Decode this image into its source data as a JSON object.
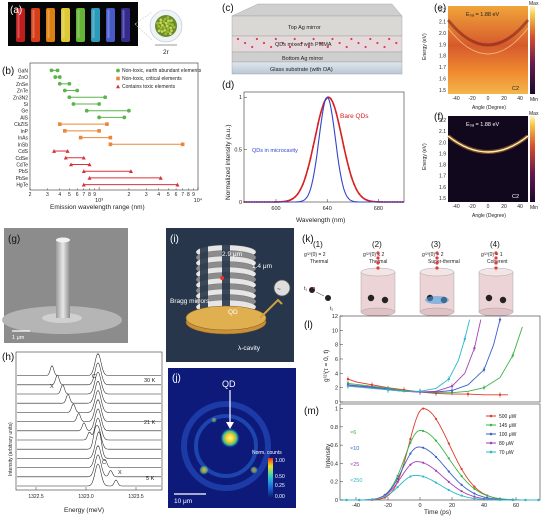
{
  "panel_labels": {
    "a": "(a)",
    "b": "(b)",
    "c": "(c)",
    "d": "(d)",
    "e": "(e)",
    "f": "(f)",
    "g": "(g)",
    "h": "(h)",
    "i": "(i)",
    "j": "(j)",
    "k": "(k)",
    "l": "(l)",
    "m": "(m)"
  },
  "panel_a": {
    "size_label": "2r",
    "tube_colors": [
      "#d21f1f",
      "#e8431a",
      "#f18b12",
      "#f0d93a",
      "#6cc43a",
      "#2fa8c9",
      "#4c63d8",
      "#3a2f9a"
    ]
  },
  "panel_b": {
    "xlabel": "Emission wavelength range (nm)",
    "x_ticks": [
      {
        "v": 1000,
        "label": "10³"
      },
      {
        "v": 10000,
        "label": "10⁴"
      }
    ],
    "legend": [
      {
        "label": "Non-toxic, earth abundant elements",
        "color": "#5bb54a",
        "marker": "circle"
      },
      {
        "label": "Non-toxic, critical elements",
        "color": "#e8883a",
        "marker": "square"
      },
      {
        "label": "Contains toxic elements",
        "color": "#d8323a",
        "marker": "triangle"
      }
    ],
    "chart_data": {
      "type": "range",
      "xscale": "log",
      "xlim": [
        200,
        10000
      ],
      "materials": [
        {
          "name": "GaN",
          "range": [
            330,
            380
          ],
          "class": 0
        },
        {
          "name": "ZnO",
          "range": [
            360,
            400
          ],
          "class": 0
        },
        {
          "name": "ZnSe",
          "range": [
            400,
            500
          ],
          "class": 0
        },
        {
          "name": "ZnTe",
          "range": [
            450,
            600
          ],
          "class": 0
        },
        {
          "name": "Zn3N2",
          "range": [
            500,
            1150
          ],
          "class": 0
        },
        {
          "name": "Si",
          "range": [
            550,
            1000
          ],
          "class": 0
        },
        {
          "name": "Ge",
          "range": [
            750,
            2000
          ],
          "class": 0
        },
        {
          "name": "AlS",
          "range": [
            1000,
            1800
          ],
          "class": 0
        },
        {
          "name": "CkZIS",
          "range": [
            400,
            1200
          ],
          "class": 1
        },
        {
          "name": "InP",
          "range": [
            450,
            1000
          ],
          "class": 1
        },
        {
          "name": "InAs",
          "range": [
            650,
            1300
          ],
          "class": 1
        },
        {
          "name": "InSb",
          "range": [
            1300,
            7000
          ],
          "class": 1
        },
        {
          "name": "CdS",
          "range": [
            350,
            480
          ],
          "class": 2
        },
        {
          "name": "CdSe",
          "range": [
            460,
            700
          ],
          "class": 2
        },
        {
          "name": "CdTe",
          "range": [
            520,
            800
          ],
          "class": 2
        },
        {
          "name": "PbS",
          "range": [
            700,
            2100
          ],
          "class": 2
        },
        {
          "name": "PbSe",
          "range": [
            800,
            4200
          ],
          "class": 2
        },
        {
          "name": "HgTe",
          "range": [
            700,
            6200
          ],
          "class": 2
        }
      ]
    }
  },
  "panel_c": {
    "top": "Top Ag mirror",
    "middle": "QDs mixed with PMMA",
    "bottom": "Bottom Ag mirror",
    "substrate": "Glass substrate (with OA)"
  },
  "panel_d": {
    "ylabel": "Normalized intensity (a.u.)",
    "xlabel": "Wavelength (nm)",
    "x_ticks": [
      600,
      640,
      680
    ],
    "y_ticks": [
      0,
      0.5,
      1
    ],
    "series_labels": {
      "bare": "Bare QDs",
      "cavity": "QDs in microcavity"
    },
    "chart_data": {
      "type": "line",
      "xlim": [
        575,
        700
      ],
      "ylim": [
        0,
        1.05
      ],
      "series": [
        {
          "name": "Bare QDs",
          "color": "#d62020",
          "center": 641,
          "fwhm": 25
        },
        {
          "name": "QDs in microcavity",
          "color": "#3344cc",
          "center": 640,
          "fwhm": 15
        }
      ]
    }
  },
  "panel_e": {
    "annotation": "E₀ₐ = 1.88 eV",
    "code": "C2",
    "ylabel": "Energy (eV)",
    "xlabel": "Angle (Degree)",
    "x_ticks": [
      -40,
      -20,
      0,
      20,
      40
    ],
    "y_ticks": [
      "2.2",
      "2.1",
      "2.0",
      "1.9",
      "1.8",
      "1.7",
      "1.6",
      "1.5"
    ],
    "cb_max": "Max",
    "cb_min": "Min"
  },
  "panel_f": {
    "annotation": "E₀ₐ = 1.88 eV",
    "code": "C2",
    "ylabel": "Energy (eV)",
    "xlabel": "Angle (Degree)",
    "x_ticks": [
      -40,
      -20,
      0,
      20,
      40
    ],
    "y_ticks": [
      "2.2",
      "2.1",
      "2.0",
      "1.9",
      "1.8",
      "1.7",
      "1.6",
      "1.5"
    ],
    "cb_max": "Max",
    "cb_min": "Min"
  },
  "panel_g": {
    "scale": "1 μm"
  },
  "panel_h": {
    "ylabel": "Intensity (arbitrary units)",
    "xlabel": "Energy (meV)",
    "x_ticks": [
      "1322.5",
      "1323.0",
      "1323.5"
    ],
    "labels": {
      "x": "X",
      "c": "C",
      "t30": "30 K",
      "t21": "21 K",
      "t5": "5 K"
    }
  },
  "panel_i": {
    "dim1": "2.9 μm",
    "dim2": "1.4 μm",
    "bragg": "Bragg mirrors",
    "qd": "QD",
    "cavity": "λ-cavity",
    "source": "~"
  },
  "panel_j": {
    "qd": "QD",
    "scale": "10 μm",
    "cb_title": "Norm. counts",
    "cb_ticks": [
      "1.00",
      "0.50",
      "0.25",
      "0.00"
    ]
  },
  "panel_k": {
    "items": [
      {
        "num": "(1)",
        "g2": "g⁽²⁾(0) = 2",
        "desc": "Thermal"
      },
      {
        "num": "(2)",
        "g2": "g⁽²⁾(0) ≤ 2",
        "desc": "Thermal"
      },
      {
        "num": "(3)",
        "g2": "g⁽²⁾(0) > 2",
        "desc": "Super-thermal"
      },
      {
        "num": "(4)",
        "g2": "g⁽²⁾(0) = 1",
        "desc": "Coherent"
      }
    ],
    "t1": "t₁",
    "t2": "t₂"
  },
  "panel_l": {
    "ylabel": "g⁽²⁾(τ = 0, t)",
    "y_ticks": [
      0,
      2,
      4,
      6,
      8,
      10,
      12
    ],
    "chart_data": {
      "type": "line",
      "xlim": [
        -50,
        75
      ],
      "ylim": [
        0,
        12
      ],
      "series": [
        {
          "name": "500 μW",
          "color": "#e03a2a",
          "x": [
            -45,
            -40,
            -30,
            -20,
            -10,
            0,
            10,
            20,
            30,
            40,
            50,
            55
          ],
          "y": [
            3.2,
            2.8,
            2.4,
            2.0,
            1.7,
            1.4,
            1.2,
            1.1,
            1.1,
            1.0,
            1.0,
            1.0
          ]
        },
        {
          "name": "145 μW",
          "color": "#3bb44a",
          "x": [
            -45,
            -30,
            -20,
            -10,
            0,
            10,
            20,
            30,
            40,
            50,
            58,
            64
          ],
          "y": [
            2.6,
            2.2,
            1.9,
            1.6,
            1.4,
            1.3,
            1.3,
            1.5,
            2.0,
            3.4,
            6.5,
            10.5
          ]
        },
        {
          "name": "100 μW",
          "color": "#3a62c8",
          "x": [
            -45,
            -30,
            -20,
            -10,
            0,
            10,
            20,
            30,
            40,
            46,
            50
          ],
          "y": [
            2.4,
            2.1,
            1.8,
            1.5,
            1.4,
            1.4,
            1.6,
            2.4,
            4.5,
            8.0,
            11.5
          ]
        },
        {
          "name": "80 μW",
          "color": "#a341b5",
          "x": [
            -45,
            -30,
            -20,
            -10,
            0,
            10,
            20,
            28,
            34,
            38
          ],
          "y": [
            2.3,
            2.0,
            1.7,
            1.5,
            1.4,
            1.5,
            2.2,
            4.0,
            7.5,
            11.5
          ]
        },
        {
          "name": "70 μW",
          "color": "#2bb8c8",
          "x": [
            -45,
            -30,
            -20,
            -10,
            0,
            10,
            18,
            24,
            28,
            31
          ],
          "y": [
            2.2,
            1.9,
            1.7,
            1.5,
            1.5,
            1.9,
            3.2,
            5.8,
            8.8,
            11.5
          ]
        }
      ]
    }
  },
  "panel_m": {
    "ylabel": "Intensity",
    "xlabel": "Time (ps)",
    "x_ticks": [
      -40,
      -20,
      0,
      20,
      40,
      60
    ],
    "y_ticks": [
      0,
      0.2,
      0.4,
      0.6,
      0.8,
      1
    ],
    "multipliers": [
      "×6",
      "×10",
      "×25",
      "×250"
    ],
    "chart_data": {
      "type": "line",
      "xlim": [
        -50,
        75
      ],
      "ylim": [
        0,
        1.05
      ],
      "series": [
        {
          "name": "500 μW",
          "color": "#e03a2a",
          "peak": 1.0,
          "center": 2,
          "rise": 12,
          "decay": 22
        },
        {
          "name": "145 μW",
          "color": "#3bb44a",
          "peak": 0.76,
          "center": 0,
          "rise": 13,
          "decay": 24
        },
        {
          "name": "100 μW",
          "color": "#3a62c8",
          "peak": 0.58,
          "center": -1,
          "rise": 13,
          "decay": 23
        },
        {
          "name": "80 μW",
          "color": "#a341b5",
          "peak": 0.42,
          "center": -2,
          "rise": 13,
          "decay": 22
        },
        {
          "name": "70 μW",
          "color": "#2bb8c8",
          "peak": 0.27,
          "center": -3,
          "rise": 13,
          "decay": 21
        }
      ]
    }
  }
}
